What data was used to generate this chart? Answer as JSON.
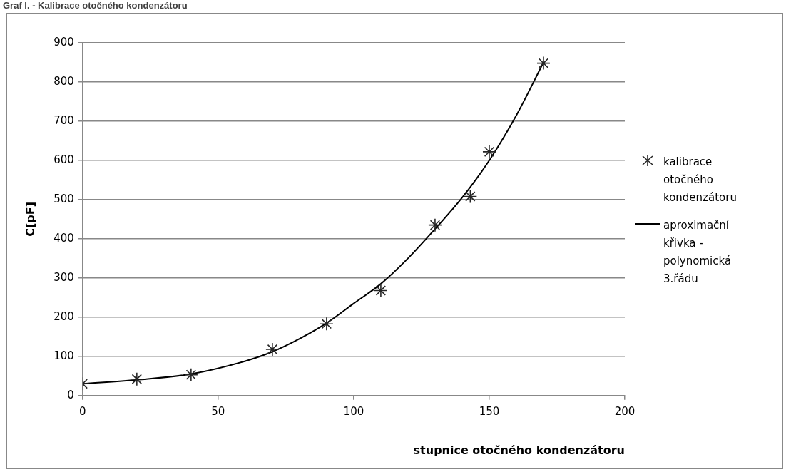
{
  "chart_data": {
    "type": "scatter",
    "title": "Graf I. - Kalibrace otočného kondenzátoru",
    "xlabel": "stupnice otočného kondenzátoru",
    "ylabel": "C[pF]",
    "xlim": [
      0,
      200
    ],
    "xticks": [
      0,
      50,
      100,
      150,
      200
    ],
    "ylim": [
      0,
      900
    ],
    "yticks": [
      0,
      100,
      200,
      300,
      400,
      500,
      600,
      700,
      800,
      900
    ],
    "grid": "y",
    "legend": "right",
    "series": [
      {
        "name": "kalibrace otočného kondenzátoru",
        "type": "scatter",
        "marker": "cross",
        "color": "#262626",
        "x": [
          0,
          20,
          40,
          70,
          90,
          110,
          130,
          143,
          150,
          170
        ],
        "values": [
          30,
          42,
          53,
          118,
          183,
          268,
          435,
          508,
          622,
          848
        ]
      },
      {
        "name": "aproximační křivka - polynomická 3.řádu",
        "type": "line",
        "marker": "none",
        "line_style": "solid",
        "color": "#000000",
        "x": [
          0,
          20,
          40,
          60,
          70,
          80,
          90,
          100,
          110,
          120,
          130,
          140,
          150,
          160,
          170
        ],
        "values": [
          30,
          40,
          55,
          88,
          112,
          145,
          185,
          235,
          285,
          350,
          425,
          505,
          600,
          715,
          850
        ]
      }
    ]
  }
}
